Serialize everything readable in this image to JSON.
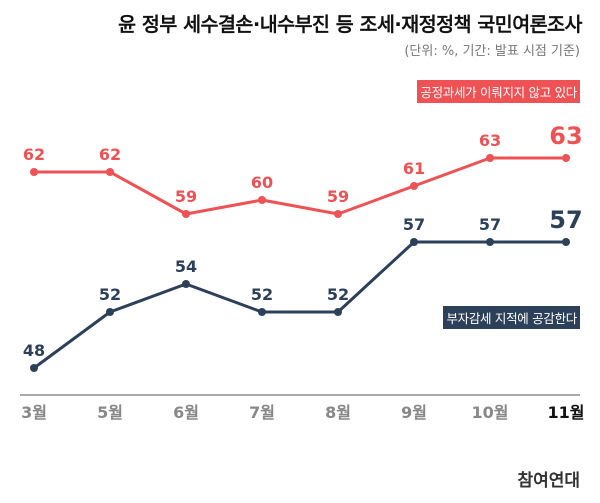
{
  "chart_data": {
    "type": "line",
    "title": "윤 정부 세수결손·내수부진 등 조세·재정정책 국민여론조사",
    "subtitle": "(단위: %, 기간: 발표 시점 기준)",
    "categories": [
      "3월",
      "5월",
      "6월",
      "7월",
      "8월",
      "9월",
      "10월",
      "11월"
    ],
    "series": [
      {
        "name": "공정과세가 이뤄지지 않고 있다",
        "color": "#ef5254",
        "values": [
          62,
          62,
          59,
          60,
          59,
          61,
          63,
          63
        ]
      },
      {
        "name": "부자감세 지적에 공감한다",
        "color": "#2c4059",
        "values": [
          48,
          52,
          54,
          52,
          52,
          57,
          57,
          57
        ]
      }
    ],
    "grid": false,
    "highlight_last": true
  },
  "source": "참여연대"
}
